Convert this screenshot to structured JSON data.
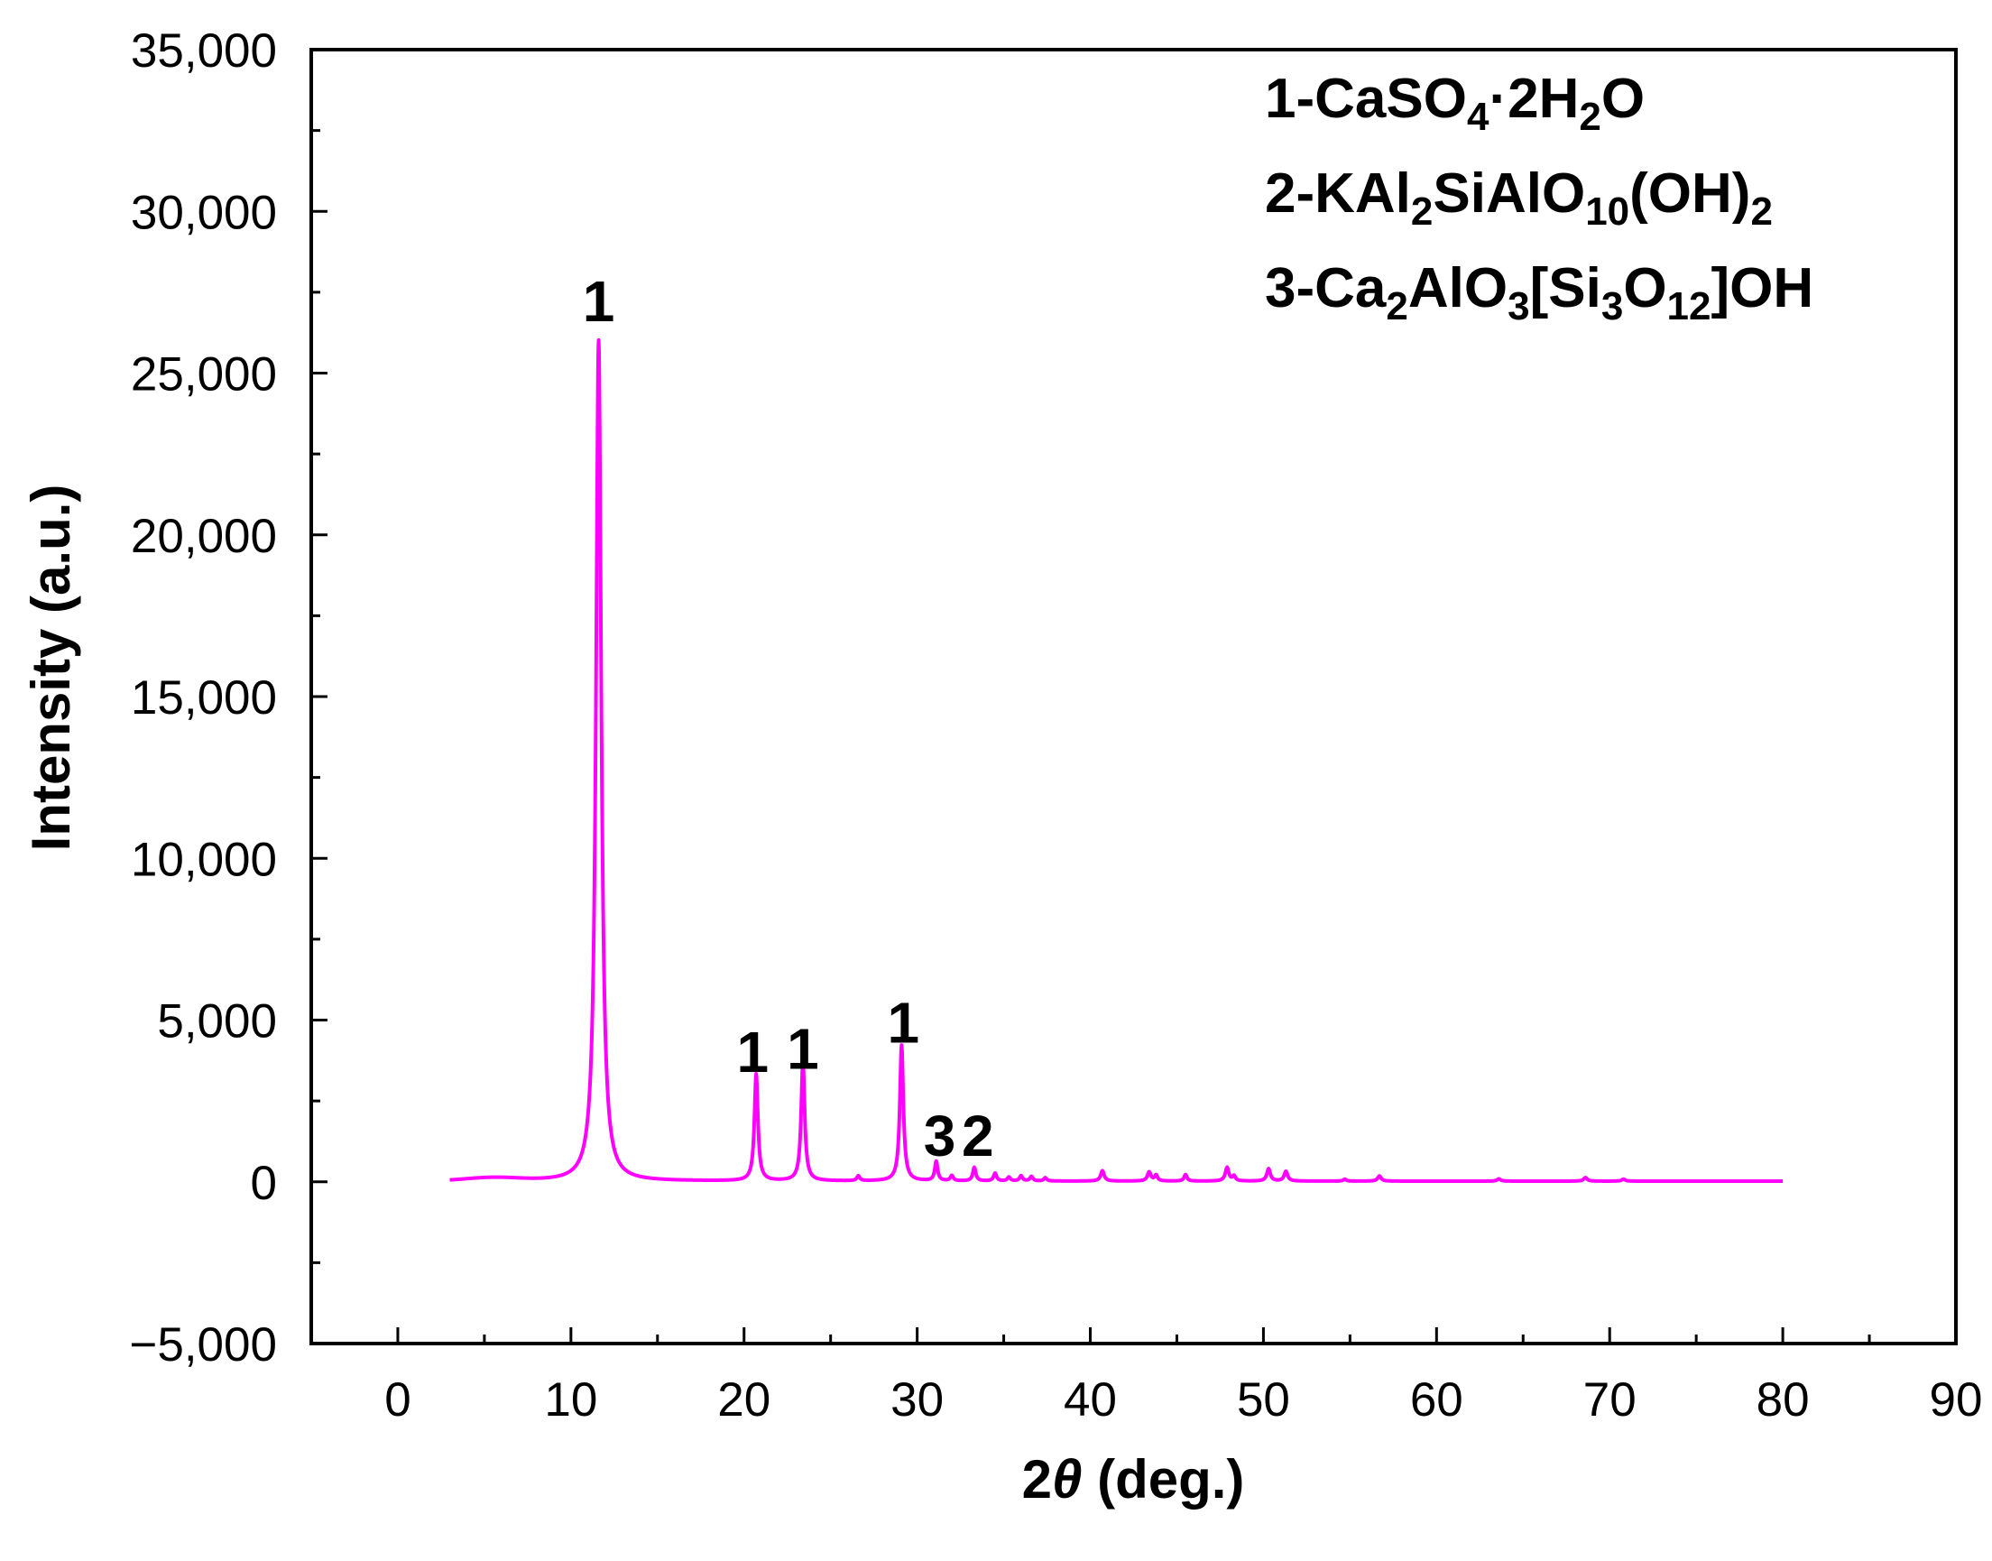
{
  "chart_data": {
    "type": "line",
    "title": "",
    "xlabel_prefix": "2",
    "xlabel_symbol": "θ",
    "xlabel_suffix": " (deg.)",
    "ylabel": "Intensity (a.u.)",
    "xlim": [
      -5,
      90
    ],
    "ylim": [
      -5000,
      35000
    ],
    "x_ticks": [
      0,
      10,
      20,
      30,
      40,
      50,
      60,
      70,
      80,
      90
    ],
    "x_tick_labels": [
      "0",
      "10",
      "20",
      "30",
      "40",
      "50",
      "60",
      "70",
      "80",
      "90"
    ],
    "y_ticks": [
      -5000,
      0,
      5000,
      10000,
      15000,
      20000,
      25000,
      30000,
      35000
    ],
    "y_tick_labels": [
      "−5,000",
      "0",
      "5,000",
      "10,000",
      "15,000",
      "20,000",
      "25,000",
      "30,000",
      "35,000"
    ],
    "grid": false,
    "series_color": "#ff00ff",
    "peaks": [
      {
        "x": 11.6,
        "y": 26000,
        "width": 0.18
      },
      {
        "x": 20.7,
        "y": 3300,
        "width": 0.12
      },
      {
        "x": 23.4,
        "y": 3700,
        "width": 0.12
      },
      {
        "x": 26.6,
        "y": 150,
        "width": 0.1
      },
      {
        "x": 29.1,
        "y": 4200,
        "width": 0.12
      },
      {
        "x": 31.1,
        "y": 600,
        "width": 0.1
      },
      {
        "x": 32.0,
        "y": 160,
        "width": 0.1
      },
      {
        "x": 33.3,
        "y": 420,
        "width": 0.1
      },
      {
        "x": 34.5,
        "y": 240,
        "width": 0.1
      },
      {
        "x": 35.3,
        "y": 120,
        "width": 0.1
      },
      {
        "x": 36.0,
        "y": 160,
        "width": 0.1
      },
      {
        "x": 36.6,
        "y": 140,
        "width": 0.1
      },
      {
        "x": 37.4,
        "y": 100,
        "width": 0.1
      },
      {
        "x": 40.7,
        "y": 320,
        "width": 0.12
      },
      {
        "x": 43.4,
        "y": 280,
        "width": 0.12
      },
      {
        "x": 43.8,
        "y": 180,
        "width": 0.1
      },
      {
        "x": 45.5,
        "y": 200,
        "width": 0.1
      },
      {
        "x": 47.9,
        "y": 420,
        "width": 0.12
      },
      {
        "x": 48.3,
        "y": 150,
        "width": 0.1
      },
      {
        "x": 50.3,
        "y": 380,
        "width": 0.12
      },
      {
        "x": 51.3,
        "y": 300,
        "width": 0.12
      },
      {
        "x": 54.7,
        "y": 60,
        "width": 0.1
      },
      {
        "x": 56.7,
        "y": 160,
        "width": 0.12
      },
      {
        "x": 63.6,
        "y": 70,
        "width": 0.12
      },
      {
        "x": 68.6,
        "y": 110,
        "width": 0.12
      },
      {
        "x": 70.8,
        "y": 60,
        "width": 0.12
      }
    ],
    "baseline": {
      "x_start": 3,
      "x_end": 80,
      "level": 20
    },
    "peak_annotations": [
      {
        "text": "1",
        "x": 11.6,
        "y": 26600
      },
      {
        "text": "1",
        "x": 20.5,
        "y": 3400
      },
      {
        "text": "1",
        "x": 23.4,
        "y": 3500
      },
      {
        "text": "1",
        "x": 29.2,
        "y": 4300
      },
      {
        "text": "3",
        "x": 31.3,
        "y": 800
      },
      {
        "text": "2",
        "x": 33.5,
        "y": 800
      }
    ],
    "legend_entries": [
      {
        "parts": [
          [
            "1-CaSO",
            ""
          ],
          [
            "4",
            "sub"
          ],
          [
            "·2H",
            ""
          ],
          [
            "2",
            "sub"
          ],
          [
            "O",
            ""
          ]
        ]
      },
      {
        "parts": [
          [
            "2-KAl",
            ""
          ],
          [
            "2",
            "sub"
          ],
          [
            "SiAlO",
            ""
          ],
          [
            "10",
            "sub"
          ],
          [
            "(OH)",
            ""
          ],
          [
            "2",
            "sub"
          ]
        ]
      },
      {
        "parts": [
          [
            "3-Ca",
            ""
          ],
          [
            "2",
            "sub"
          ],
          [
            "AlO",
            ""
          ],
          [
            "3",
            "sub"
          ],
          [
            "[Si",
            ""
          ],
          [
            "3",
            "sub"
          ],
          [
            "O",
            ""
          ],
          [
            "12",
            "sub"
          ],
          [
            "]OH",
            ""
          ]
        ]
      }
    ]
  }
}
